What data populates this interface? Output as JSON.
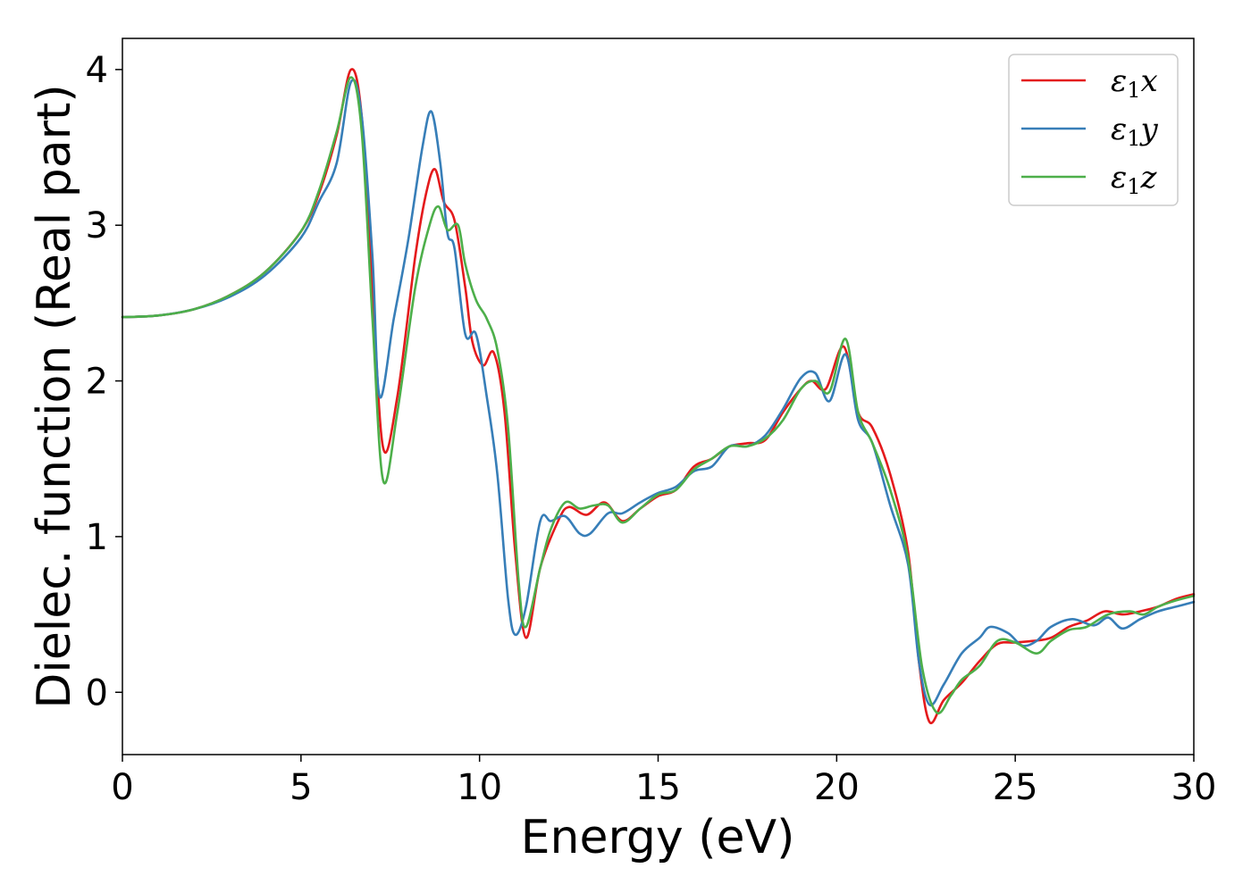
{
  "chart_data": {
    "type": "line",
    "title": "",
    "xlabel": "Energy (eV)",
    "ylabel": "Dielec. function (Real part)",
    "xlim": [
      0,
      30
    ],
    "ylim": [
      -0.4,
      4.2
    ],
    "xticks": [
      0,
      5,
      10,
      15,
      20,
      25,
      30
    ],
    "xtick_labels": [
      "0",
      "5",
      "10",
      "15",
      "20",
      "25",
      "30"
    ],
    "yticks": [
      0,
      1,
      2,
      3,
      4
    ],
    "ytick_labels": [
      "0",
      "1",
      "2",
      "3",
      "4"
    ],
    "grid": false,
    "legend_position": "top-right",
    "series": [
      {
        "name": "ε1x",
        "legend_main": "ε",
        "legend_sub": "1",
        "legend_suffix": "x",
        "color": "#e41a1c",
        "points": [
          [
            0,
            2.41
          ],
          [
            1,
            2.42
          ],
          [
            2,
            2.46
          ],
          [
            3,
            2.55
          ],
          [
            4,
            2.7
          ],
          [
            5,
            2.96
          ],
          [
            5.5,
            3.2
          ],
          [
            6.0,
            3.58
          ],
          [
            6.4,
            4.0
          ],
          [
            6.7,
            3.7
          ],
          [
            7.0,
            2.6
          ],
          [
            7.3,
            1.57
          ],
          [
            7.7,
            1.9
          ],
          [
            8.2,
            2.8
          ],
          [
            8.5,
            3.2
          ],
          [
            8.75,
            3.36
          ],
          [
            9.0,
            3.15
          ],
          [
            9.3,
            3.03
          ],
          [
            9.6,
            2.6
          ],
          [
            9.8,
            2.25
          ],
          [
            10.1,
            2.1
          ],
          [
            10.4,
            2.18
          ],
          [
            10.7,
            1.8
          ],
          [
            11.0,
            0.9
          ],
          [
            11.3,
            0.35
          ],
          [
            11.7,
            0.8
          ],
          [
            12.2,
            1.1
          ],
          [
            12.5,
            1.19
          ],
          [
            13.0,
            1.14
          ],
          [
            13.5,
            1.22
          ],
          [
            14.0,
            1.1
          ],
          [
            14.5,
            1.18
          ],
          [
            15.0,
            1.26
          ],
          [
            15.5,
            1.3
          ],
          [
            16.0,
            1.45
          ],
          [
            16.5,
            1.5
          ],
          [
            17.0,
            1.58
          ],
          [
            17.5,
            1.6
          ],
          [
            18.0,
            1.62
          ],
          [
            18.5,
            1.8
          ],
          [
            19.0,
            1.95
          ],
          [
            19.3,
            2.0
          ],
          [
            19.7,
            1.95
          ],
          [
            20.2,
            2.22
          ],
          [
            20.6,
            1.8
          ],
          [
            21.0,
            1.7
          ],
          [
            21.5,
            1.4
          ],
          [
            22.0,
            0.9
          ],
          [
            22.3,
            0.2
          ],
          [
            22.6,
            -0.19
          ],
          [
            23.0,
            -0.05
          ],
          [
            23.5,
            0.06
          ],
          [
            24.0,
            0.2
          ],
          [
            24.5,
            0.31
          ],
          [
            25.0,
            0.32
          ],
          [
            25.5,
            0.33
          ],
          [
            26.0,
            0.35
          ],
          [
            26.5,
            0.42
          ],
          [
            27.0,
            0.46
          ],
          [
            27.5,
            0.52
          ],
          [
            28.0,
            0.5
          ],
          [
            28.5,
            0.52
          ],
          [
            29.0,
            0.55
          ],
          [
            29.5,
            0.6
          ],
          [
            30.0,
            0.63
          ]
        ]
      },
      {
        "name": "ε1y",
        "legend_main": "ε",
        "legend_sub": "1",
        "legend_suffix": "y",
        "color": "#377eb8",
        "points": [
          [
            0,
            2.41
          ],
          [
            1,
            2.42
          ],
          [
            2,
            2.46
          ],
          [
            3,
            2.54
          ],
          [
            4,
            2.68
          ],
          [
            5,
            2.92
          ],
          [
            5.5,
            3.15
          ],
          [
            6.0,
            3.4
          ],
          [
            6.4,
            3.92
          ],
          [
            6.7,
            3.7
          ],
          [
            7.0,
            2.8
          ],
          [
            7.2,
            1.9
          ],
          [
            7.6,
            2.4
          ],
          [
            8.0,
            2.9
          ],
          [
            8.4,
            3.5
          ],
          [
            8.65,
            3.73
          ],
          [
            8.9,
            3.4
          ],
          [
            9.1,
            2.95
          ],
          [
            9.3,
            2.85
          ],
          [
            9.6,
            2.3
          ],
          [
            9.9,
            2.3
          ],
          [
            10.2,
            1.9
          ],
          [
            10.5,
            1.4
          ],
          [
            10.8,
            0.6
          ],
          [
            11.0,
            0.37
          ],
          [
            11.3,
            0.55
          ],
          [
            11.7,
            1.1
          ],
          [
            12.0,
            1.1
          ],
          [
            12.4,
            1.13
          ],
          [
            12.8,
            1.02
          ],
          [
            13.1,
            1.02
          ],
          [
            13.6,
            1.15
          ],
          [
            14.0,
            1.15
          ],
          [
            14.5,
            1.22
          ],
          [
            15.0,
            1.28
          ],
          [
            15.5,
            1.32
          ],
          [
            16.0,
            1.42
          ],
          [
            16.5,
            1.45
          ],
          [
            17.0,
            1.58
          ],
          [
            17.5,
            1.58
          ],
          [
            18.0,
            1.65
          ],
          [
            18.5,
            1.82
          ],
          [
            19.0,
            2.02
          ],
          [
            19.4,
            2.05
          ],
          [
            19.8,
            1.87
          ],
          [
            20.25,
            2.17
          ],
          [
            20.6,
            1.75
          ],
          [
            21.0,
            1.6
          ],
          [
            21.5,
            1.2
          ],
          [
            22.0,
            0.82
          ],
          [
            22.3,
            0.2
          ],
          [
            22.6,
            -0.08
          ],
          [
            23.0,
            0.05
          ],
          [
            23.5,
            0.25
          ],
          [
            24.0,
            0.35
          ],
          [
            24.3,
            0.42
          ],
          [
            24.8,
            0.38
          ],
          [
            25.2,
            0.3
          ],
          [
            25.6,
            0.33
          ],
          [
            26.0,
            0.42
          ],
          [
            26.6,
            0.47
          ],
          [
            27.2,
            0.43
          ],
          [
            27.6,
            0.48
          ],
          [
            28.0,
            0.41
          ],
          [
            28.5,
            0.47
          ],
          [
            29.0,
            0.52
          ],
          [
            29.5,
            0.55
          ],
          [
            30.0,
            0.58
          ]
        ]
      },
      {
        "name": "ε1z",
        "legend_main": "ε",
        "legend_sub": "1",
        "legend_suffix": "z",
        "color": "#4daf4a",
        "points": [
          [
            0,
            2.41
          ],
          [
            1,
            2.42
          ],
          [
            2,
            2.46
          ],
          [
            3,
            2.55
          ],
          [
            4,
            2.7
          ],
          [
            5,
            2.96
          ],
          [
            5.5,
            3.22
          ],
          [
            6.0,
            3.6
          ],
          [
            6.4,
            3.95
          ],
          [
            6.7,
            3.6
          ],
          [
            7.0,
            2.4
          ],
          [
            7.3,
            1.36
          ],
          [
            7.7,
            1.8
          ],
          [
            8.2,
            2.6
          ],
          [
            8.6,
            3.0
          ],
          [
            8.85,
            3.12
          ],
          [
            9.1,
            2.97
          ],
          [
            9.4,
            3.0
          ],
          [
            9.6,
            2.75
          ],
          [
            9.9,
            2.52
          ],
          [
            10.2,
            2.4
          ],
          [
            10.5,
            2.2
          ],
          [
            10.8,
            1.7
          ],
          [
            11.1,
            0.7
          ],
          [
            11.3,
            0.42
          ],
          [
            11.7,
            0.8
          ],
          [
            12.0,
            1.05
          ],
          [
            12.4,
            1.22
          ],
          [
            12.8,
            1.18
          ],
          [
            13.2,
            1.2
          ],
          [
            13.6,
            1.2
          ],
          [
            14.0,
            1.09
          ],
          [
            14.5,
            1.18
          ],
          [
            15.0,
            1.27
          ],
          [
            15.5,
            1.3
          ],
          [
            16.0,
            1.43
          ],
          [
            16.5,
            1.5
          ],
          [
            17.0,
            1.58
          ],
          [
            17.5,
            1.58
          ],
          [
            18.0,
            1.63
          ],
          [
            18.5,
            1.75
          ],
          [
            19.0,
            1.95
          ],
          [
            19.4,
            2.0
          ],
          [
            19.8,
            1.93
          ],
          [
            20.25,
            2.27
          ],
          [
            20.6,
            1.8
          ],
          [
            21.0,
            1.6
          ],
          [
            21.5,
            1.3
          ],
          [
            22.0,
            0.86
          ],
          [
            22.4,
            0.15
          ],
          [
            22.8,
            -0.13
          ],
          [
            23.2,
            -0.02
          ],
          [
            23.5,
            0.08
          ],
          [
            24.0,
            0.17
          ],
          [
            24.5,
            0.33
          ],
          [
            25.0,
            0.32
          ],
          [
            25.6,
            0.25
          ],
          [
            26.0,
            0.33
          ],
          [
            26.5,
            0.4
          ],
          [
            27.0,
            0.42
          ],
          [
            27.6,
            0.5
          ],
          [
            28.2,
            0.52
          ],
          [
            28.6,
            0.5
          ],
          [
            29.0,
            0.55
          ],
          [
            29.5,
            0.59
          ],
          [
            30.0,
            0.62
          ]
        ]
      }
    ]
  }
}
